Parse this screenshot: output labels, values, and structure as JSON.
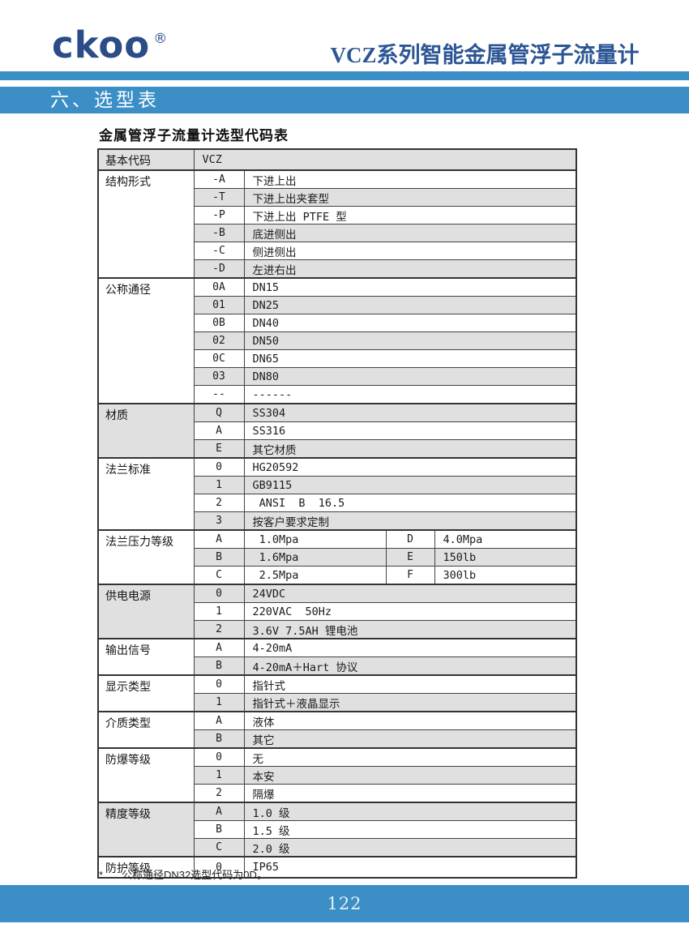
{
  "colors": {
    "accent_blue": "#3b8ec6",
    "logo_navy": "#2b4c86",
    "title_navy": "#2b5695",
    "row_shade": "#e0e0e0",
    "table_border": "#424242"
  },
  "header": {
    "logo": "ckoo",
    "registered_mark": "®",
    "title": "VCZ系列智能金属管浮子流量计"
  },
  "section": {
    "title": "六、选型表"
  },
  "table": {
    "caption": "金属管浮子流量计选型代码表",
    "base_row": {
      "label": "基本代码",
      "value": "VCZ"
    },
    "groups": [
      {
        "label": "结构形式",
        "rows": [
          [
            "-A",
            "下进上出"
          ],
          [
            "-T",
            "下进上出夹套型"
          ],
          [
            "-P",
            "下进上出 PTFE 型"
          ],
          [
            "-B",
            "底进侧出"
          ],
          [
            "-C",
            "侧进侧出"
          ],
          [
            "-D",
            "左进右出"
          ]
        ]
      },
      {
        "label": "公称通径",
        "rows": [
          [
            "0A",
            "DN15"
          ],
          [
            "01",
            "DN25"
          ],
          [
            "0B",
            "DN40"
          ],
          [
            "02",
            "DN50"
          ],
          [
            "0C",
            "DN65"
          ],
          [
            "03",
            "DN80"
          ],
          [
            "--",
            "------"
          ]
        ]
      },
      {
        "label": "材质",
        "rows": [
          [
            "Q",
            "SS304"
          ],
          [
            "A",
            "SS316"
          ],
          [
            "E",
            "其它材质"
          ]
        ]
      },
      {
        "label": "法兰标准",
        "rows": [
          [
            "0",
            "HG20592"
          ],
          [
            "1",
            "GB9115"
          ],
          [
            "2",
            " ANSI  B  16.5"
          ],
          [
            "3",
            "按客户要求定制"
          ]
        ]
      },
      {
        "label": "法兰压力等级",
        "rows": [
          [
            "A",
            " 1.0Mpa",
            "D",
            "4.0Mpa"
          ],
          [
            "B",
            " 1.6Mpa",
            "E",
            "150lb"
          ],
          [
            "C",
            " 2.5Mpa",
            "F",
            "300lb"
          ]
        ]
      },
      {
        "label": "供电电源",
        "rows": [
          [
            "0",
            "24VDC"
          ],
          [
            "1",
            "220VAC  50Hz"
          ],
          [
            "2",
            "3.6V 7.5AH 锂电池"
          ]
        ]
      },
      {
        "label": "输出信号",
        "rows": [
          [
            "A",
            "4-20mA"
          ],
          [
            "B",
            "4-20mA＋Hart 协议"
          ]
        ]
      },
      {
        "label": "显示类型",
        "rows": [
          [
            "0",
            "指针式"
          ],
          [
            "1",
            "指针式＋液晶显示"
          ]
        ]
      },
      {
        "label": "介质类型",
        "rows": [
          [
            "A",
            "液体"
          ],
          [
            "B",
            "其它"
          ]
        ]
      },
      {
        "label": "防爆等级",
        "rows": [
          [
            "0",
            "无"
          ],
          [
            "1",
            "本安"
          ],
          [
            "2",
            "隔爆"
          ]
        ]
      },
      {
        "label": "精度等级",
        "rows": [
          [
            "A",
            "1.0 级"
          ],
          [
            "B",
            "1.5 级"
          ],
          [
            "C",
            "2.0 级"
          ]
        ]
      },
      {
        "label": "防护等级",
        "rows": [
          [
            "0",
            "IP65"
          ]
        ]
      }
    ]
  },
  "footnote": {
    "marker": "*",
    "text": "公称通径DN32选型代码为0D。"
  },
  "footer": {
    "page_number": "122"
  }
}
